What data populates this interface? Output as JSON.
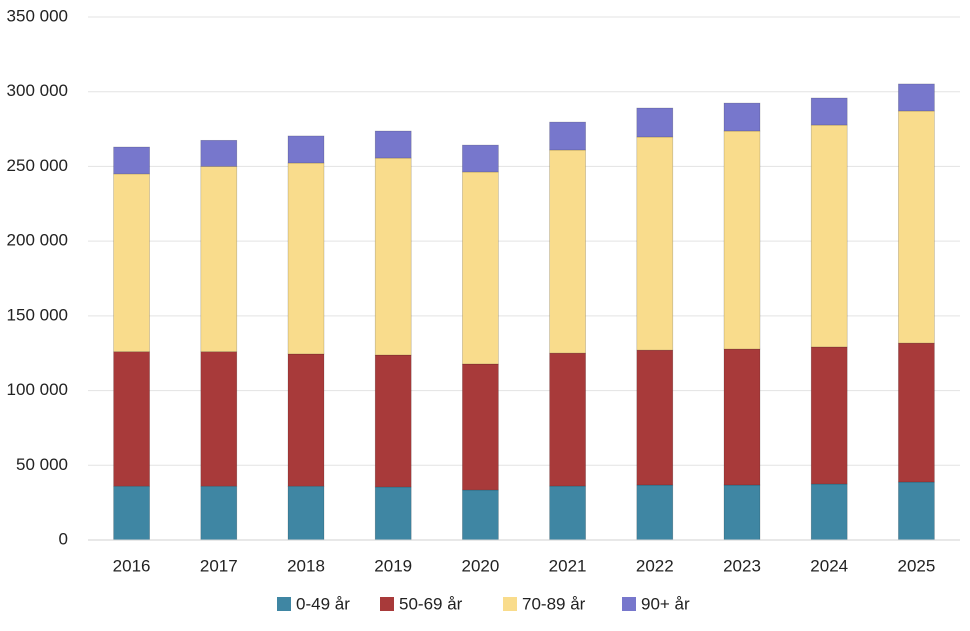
{
  "chart_data": {
    "type": "stacked_bar",
    "categories": [
      "2016",
      "2017",
      "2018",
      "2019",
      "2020",
      "2021",
      "2022",
      "2023",
      "2024",
      "2025"
    ],
    "series": [
      {
        "name": "0-49 år",
        "color": "#3f86a3",
        "values": [
          36000,
          36000,
          36000,
          35500,
          33500,
          36100,
          36800,
          36800,
          37500,
          38800
        ]
      },
      {
        "name": "50-69 år",
        "color": "#a83a3a",
        "values": [
          90000,
          90000,
          88500,
          88300,
          84300,
          89000,
          90300,
          91000,
          91700,
          93000
        ]
      },
      {
        "name": "70-89 år",
        "color": "#f9dc8c",
        "values": [
          119000,
          124000,
          127800,
          131800,
          128500,
          135900,
          142600,
          145900,
          148500,
          155300
        ]
      },
      {
        "name": "90+ år",
        "color": "#7777cc",
        "values": [
          18000,
          17500,
          18100,
          18100,
          18000,
          18700,
          19400,
          18700,
          18100,
          18100
        ]
      }
    ],
    "ylim": [
      0,
      350000
    ],
    "yticks": [
      0,
      {
        "value": 50000,
        "label": "50 000"
      },
      {
        "value": 100000,
        "label": "100 000"
      },
      {
        "value": 150000,
        "label": "150 000"
      },
      {
        "value": 200000,
        "label": "200 000"
      },
      {
        "value": 250000,
        "label": "250 000"
      },
      {
        "value": 300000,
        "label": "300 000"
      },
      {
        "value": 350000,
        "label": "350 000"
      }
    ],
    "grid": true,
    "legend": "bottom"
  }
}
